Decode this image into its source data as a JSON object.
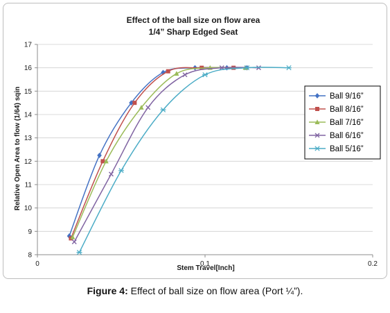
{
  "chart_data": {
    "type": "line",
    "title": "Effect of the ball size on flow area",
    "subtitle": "1/4” Sharp Edged Seat",
    "xlabel": "Stem Travel[Inch]",
    "ylabel": "Relative Open Area to flow (1/64) sqin",
    "xlim": [
      0,
      0.2
    ],
    "ylim": [
      8,
      17
    ],
    "xticks": [
      "0",
      "0.1",
      "0.2"
    ],
    "yticks": [
      "8",
      "9",
      "10",
      "11",
      "12",
      "13",
      "14",
      "15",
      "16",
      "17"
    ],
    "grid": "horizontal",
    "legend_position": "right",
    "series": [
      {
        "name": "Ball 9/16”",
        "color": "#4472C4",
        "marker": "diamond",
        "points": [
          [
            0.019,
            8.8
          ],
          [
            0.037,
            12.25
          ],
          [
            0.056,
            14.5
          ],
          [
            0.075,
            15.8
          ],
          [
            0.094,
            16.0
          ],
          [
            0.113,
            16.0
          ],
          [
            0.125,
            16.0
          ]
        ]
      },
      {
        "name": "Ball 8/16”",
        "color": "#C0504D",
        "marker": "square",
        "points": [
          [
            0.02,
            8.7
          ],
          [
            0.039,
            12.0
          ],
          [
            0.058,
            14.5
          ],
          [
            0.078,
            15.85
          ],
          [
            0.098,
            16.0
          ],
          [
            0.117,
            16.0
          ]
        ]
      },
      {
        "name": "Ball 7/16”",
        "color": "#9BBB59",
        "marker": "triangle",
        "points": [
          [
            0.021,
            8.75
          ],
          [
            0.041,
            12.0
          ],
          [
            0.062,
            14.3
          ],
          [
            0.083,
            15.75
          ],
          [
            0.103,
            16.0
          ],
          [
            0.124,
            16.0
          ]
        ]
      },
      {
        "name": "Ball 6/16”",
        "color": "#8064A2",
        "marker": "x",
        "points": [
          [
            0.022,
            8.55
          ],
          [
            0.044,
            11.45
          ],
          [
            0.066,
            14.3
          ],
          [
            0.088,
            15.7
          ],
          [
            0.11,
            16.0
          ],
          [
            0.132,
            16.0
          ]
        ]
      },
      {
        "name": "Ball 5/16”",
        "color": "#4BACC6",
        "marker": "star",
        "points": [
          [
            0.025,
            8.1
          ],
          [
            0.05,
            11.6
          ],
          [
            0.075,
            14.2
          ],
          [
            0.1,
            15.7
          ],
          [
            0.125,
            16.0
          ],
          [
            0.15,
            16.0
          ]
        ]
      }
    ]
  },
  "caption": {
    "label": "Figure 4:",
    "text": " Effect of ball size on flow area (Port ¼”)."
  }
}
